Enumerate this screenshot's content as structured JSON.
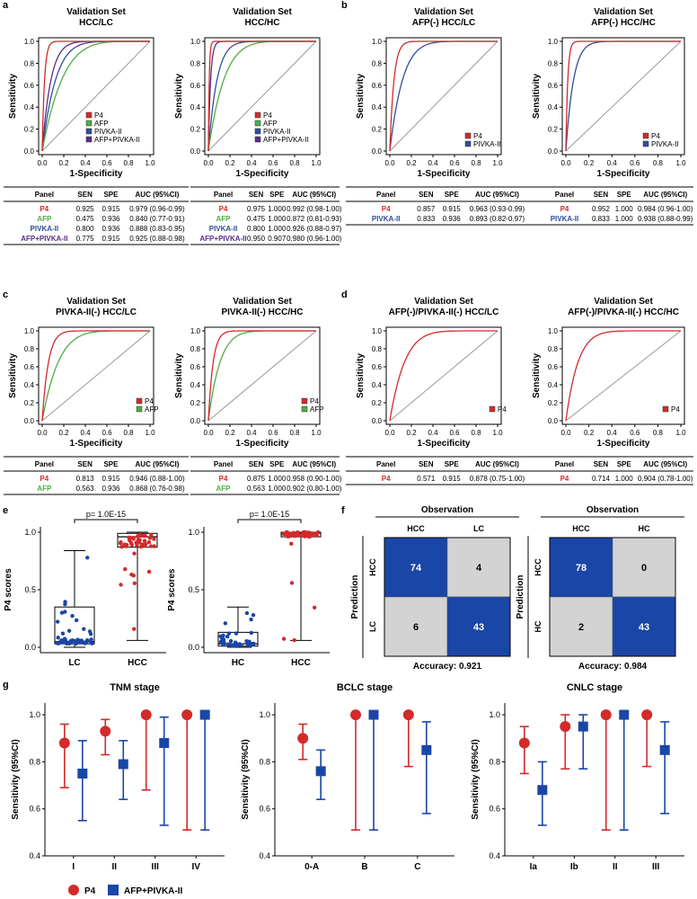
{
  "colors": {
    "p4": "#d32a2a",
    "afp": "#4fad44",
    "pivka": "#2e4f9a",
    "combo": "#5a2d8a",
    "blue": "#1a46a8",
    "gray": "#d3d3d3",
    "diag": "#999999"
  },
  "axis": {
    "xlabel": "1-Specificity",
    "ylabel": "Sensitivity",
    "ticks": [
      "0.0",
      "0.2",
      "0.4",
      "0.6",
      "0.8",
      "1.0"
    ]
  },
  "panel_letters": [
    "a",
    "b",
    "c",
    "d",
    "e",
    "f",
    "g"
  ],
  "roc_panels": [
    {
      "title1": "Validation Set",
      "title2": "HCC/LC",
      "series": [
        {
          "name": "P4",
          "color": "p4",
          "auc": 0.979
        },
        {
          "name": "AFP",
          "color": "afp",
          "auc": 0.84
        },
        {
          "name": "PIVKA-II",
          "color": "pivka",
          "auc": 0.888
        },
        {
          "name": "AFP+PIVKA-II",
          "color": "combo",
          "auc": 0.925
        }
      ],
      "table": {
        "headers": [
          "Panel",
          "SEN",
          "SPE",
          "AUC (95%CI)"
        ],
        "rows": [
          [
            "P4",
            "0.925",
            "0.915",
            "0.979 (0.96-0.99)"
          ],
          [
            "AFP",
            "0.475",
            "0.936",
            "0.840 (0.77-0.91)"
          ],
          [
            "PIVKA-II",
            "0.800",
            "0.936",
            "0.888 (0.83-0.95)"
          ],
          [
            "AFP+PIVKA-II",
            "0.775",
            "0.915",
            "0.925 (0.88-0.98)"
          ]
        ]
      }
    },
    {
      "title1": "Validation Set",
      "title2": "HCC/HC",
      "series": [
        {
          "name": "P4",
          "color": "p4",
          "auc": 0.992
        },
        {
          "name": "AFP",
          "color": "afp",
          "auc": 0.872
        },
        {
          "name": "PIVKA-II",
          "color": "pivka",
          "auc": 0.926
        },
        {
          "name": "AFP+PIVKA-II",
          "color": "combo",
          "auc": 0.98
        }
      ],
      "table": {
        "headers": [
          "Panel",
          "SEN",
          "SPE",
          "AUC (95%CI)"
        ],
        "rows": [
          [
            "P4",
            "0.975",
            "1.000",
            "0.992 (0.98-1.00)"
          ],
          [
            "AFP",
            "0.475",
            "1.000",
            "0.872 (0.81-0.93)"
          ],
          [
            "PIVKA-II",
            "0.800",
            "1.000",
            "0.926 (0.88-0.97)"
          ],
          [
            "AFP+PIVKA-II",
            "0.950",
            "0.907",
            "0.980 (0.96-1.00)"
          ]
        ]
      }
    },
    {
      "title1": "Validation Set",
      "title2": "AFP(-) HCC/LC",
      "series": [
        {
          "name": "P4",
          "color": "p4",
          "auc": 0.963
        },
        {
          "name": "PIVKA-II",
          "color": "pivka",
          "auc": 0.893
        }
      ],
      "table": {
        "headers": [
          "Panel",
          "SEN",
          "SPE",
          "AUC (95%CI)"
        ],
        "rows": [
          [
            "P4",
            "0.857",
            "0.915",
            "0.963 (0.93-0.99)"
          ],
          [
            "PIVKA-II",
            "0.833",
            "0.936",
            "0.893 (0.82-0.97)"
          ]
        ]
      }
    },
    {
      "title1": "Validation Set",
      "title2": "AFP(-) HCC/HC",
      "series": [
        {
          "name": "P4",
          "color": "p4",
          "auc": 0.984
        },
        {
          "name": "PIVKA-II",
          "color": "pivka",
          "auc": 0.938
        }
      ],
      "table": {
        "headers": [
          "Panel",
          "SEN",
          "SPE",
          "AUC (95%CI)"
        ],
        "rows": [
          [
            "P4",
            "0.952",
            "1.000",
            "0.984 (0.96-1.00)"
          ],
          [
            "PIVKA-II",
            "0.833",
            "1.000",
            "0.938 (0.88-0.99)"
          ]
        ]
      }
    },
    {
      "title1": "Validation Set",
      "title2": "PIVKA-II(-) HCC/LC",
      "series": [
        {
          "name": "P4",
          "color": "p4",
          "auc": 0.946
        },
        {
          "name": "AFP",
          "color": "afp",
          "auc": 0.868
        }
      ],
      "table": {
        "headers": [
          "Panel",
          "SEN",
          "SPE",
          "AUC (95%CI)"
        ],
        "rows": [
          [
            "P4",
            "0.813",
            "0.915",
            "0.946 (0.88-1.00)"
          ],
          [
            "AFP",
            "0.563",
            "0.936",
            "0.868 (0.76-0.98)"
          ]
        ]
      }
    },
    {
      "title1": "Validation Set",
      "title2": "PIVKA-II(-) HCC/HC",
      "series": [
        {
          "name": "P4",
          "color": "p4",
          "auc": 0.958
        },
        {
          "name": "AFP",
          "color": "afp",
          "auc": 0.902
        }
      ],
      "table": {
        "headers": [
          "Panel",
          "SEN",
          "SPE",
          "AUC (95%CI)"
        ],
        "rows": [
          [
            "P4",
            "0.875",
            "1.000",
            "0.958 (0.90-1.00)"
          ],
          [
            "AFP",
            "0.563",
            "1.000",
            "0.902 (0.80-1.00)"
          ]
        ]
      }
    },
    {
      "title1": "Validation Set",
      "title2": "AFP(-)/PIVKA-II(-) HCC/LC",
      "series": [
        {
          "name": "P4",
          "color": "p4",
          "auc": 0.878
        }
      ],
      "table": {
        "headers": [
          "Panel",
          "SEN",
          "SPE",
          "AUC (95%CI)"
        ],
        "rows": [
          [
            "P4",
            "0.571",
            "0.915",
            "0.878 (0.75-1.00)"
          ]
        ]
      }
    },
    {
      "title1": "Validation Set",
      "title2": "AFP(-)/PIVKA-II(-) HCC/HC",
      "series": [
        {
          "name": "P4",
          "color": "p4",
          "auc": 0.904
        }
      ],
      "table": {
        "headers": [
          "Panel",
          "SEN",
          "SPE",
          "AUC (95%CI)"
        ],
        "rows": [
          [
            "P4",
            "0.714",
            "1.000",
            "0.904 (0.78-1.00)"
          ]
        ]
      }
    }
  ],
  "box_panels": [
    {
      "ylabel": "P4 scores",
      "pvalue": "p= 1.0E-15",
      "yticks": [
        "0.0",
        "0.5",
        "1.0"
      ],
      "groups": [
        {
          "name": "LC",
          "color": "blue",
          "q1": 0.03,
          "median": 0.05,
          "q3": 0.35,
          "wlow": 0.0,
          "whigh": 0.84
        },
        {
          "name": "HCC",
          "color": "p4",
          "q1": 0.87,
          "median": 0.96,
          "q3": 0.99,
          "wlow": 0.06,
          "whigh": 1.0
        }
      ]
    },
    {
      "ylabel": "P4 scores",
      "pvalue": "p= 1.0E-15",
      "yticks": [
        "0.0",
        "0.5",
        "1.0"
      ],
      "groups": [
        {
          "name": "HC",
          "color": "blue",
          "q1": 0.01,
          "median": 0.03,
          "q3": 0.13,
          "wlow": 0.0,
          "whigh": 0.35
        },
        {
          "name": "HCC",
          "color": "p4",
          "q1": 0.96,
          "median": 0.99,
          "q3": 1.0,
          "wlow": 0.06,
          "whigh": 1.0
        }
      ]
    }
  ],
  "confusion": [
    {
      "observation": "Observation",
      "prediction": "Prediction",
      "cols": [
        "HCC",
        "LC"
      ],
      "rows": [
        "HCC",
        "LC"
      ],
      "cells": [
        [
          74,
          4
        ],
        [
          6,
          43
        ]
      ],
      "accuracy": "Accuracy: 0.921"
    },
    {
      "observation": "Observation",
      "prediction": "Prediction",
      "cols": [
        "HCC",
        "HC"
      ],
      "rows": [
        "HCC",
        "HC"
      ],
      "cells": [
        [
          78,
          0
        ],
        [
          2,
          43
        ]
      ],
      "accuracy": "Accuracy: 0.984"
    }
  ],
  "chart_data": {
    "type": "scatter",
    "description_panels": [
      {
        "title": "TNM stage",
        "categories": [
          "I",
          "II",
          "III",
          "IV"
        ],
        "ylabel": "Sensitivity (95%CI)",
        "ylim": [
          0.4,
          1.05
        ],
        "series": [
          {
            "name": "P4",
            "values": [
              0.88,
              0.93,
              1.0,
              1.0
            ],
            "lo": [
              0.69,
              0.83,
              0.68,
              0.51
            ],
            "hi": [
              0.96,
              0.98,
              1.0,
              1.0
            ]
          },
          {
            "name": "AFP+PIVKA-II",
            "values": [
              0.75,
              0.79,
              0.88,
              1.0
            ],
            "lo": [
              0.55,
              0.64,
              0.53,
              0.51
            ],
            "hi": [
              0.89,
              0.89,
              0.99,
              1.0
            ]
          }
        ]
      },
      {
        "title": "BCLC stage",
        "categories": [
          "0-A",
          "B",
          "C"
        ],
        "ylabel": "Sensitivity (95%CI)",
        "ylim": [
          0.4,
          1.05
        ],
        "series": [
          {
            "name": "P4",
            "values": [
              0.9,
              1.0,
              1.0
            ],
            "lo": [
              0.81,
              0.51,
              0.78
            ],
            "hi": [
              0.96,
              1.0,
              1.0
            ]
          },
          {
            "name": "AFP+PIVKA-II",
            "values": [
              0.76,
              1.0,
              0.85
            ],
            "lo": [
              0.64,
              0.51,
              0.58
            ],
            "hi": [
              0.85,
              1.0,
              0.97
            ]
          }
        ]
      },
      {
        "title": "CNLC stage",
        "categories": [
          "Ia",
          "Ib",
          "II",
          "III"
        ],
        "ylabel": "Sensitivity (95%CI)",
        "ylim": [
          0.4,
          1.05
        ],
        "series": [
          {
            "name": "P4",
            "values": [
              0.88,
              0.95,
              1.0,
              1.0
            ],
            "lo": [
              0.75,
              0.77,
              0.51,
              0.78
            ],
            "hi": [
              0.95,
              1.0,
              1.0,
              1.0
            ]
          },
          {
            "name": "AFP+PIVKA-II",
            "values": [
              0.68,
              0.95,
              1.0,
              0.85
            ],
            "lo": [
              0.53,
              0.77,
              0.51,
              0.58
            ],
            "hi": [
              0.8,
              1.0,
              1.0,
              0.97
            ]
          }
        ]
      }
    ],
    "yticks": [
      "0.4",
      "0.6",
      "0.8",
      "1.0"
    ],
    "legend": [
      "P4",
      "AFP+PIVKA-II"
    ]
  }
}
